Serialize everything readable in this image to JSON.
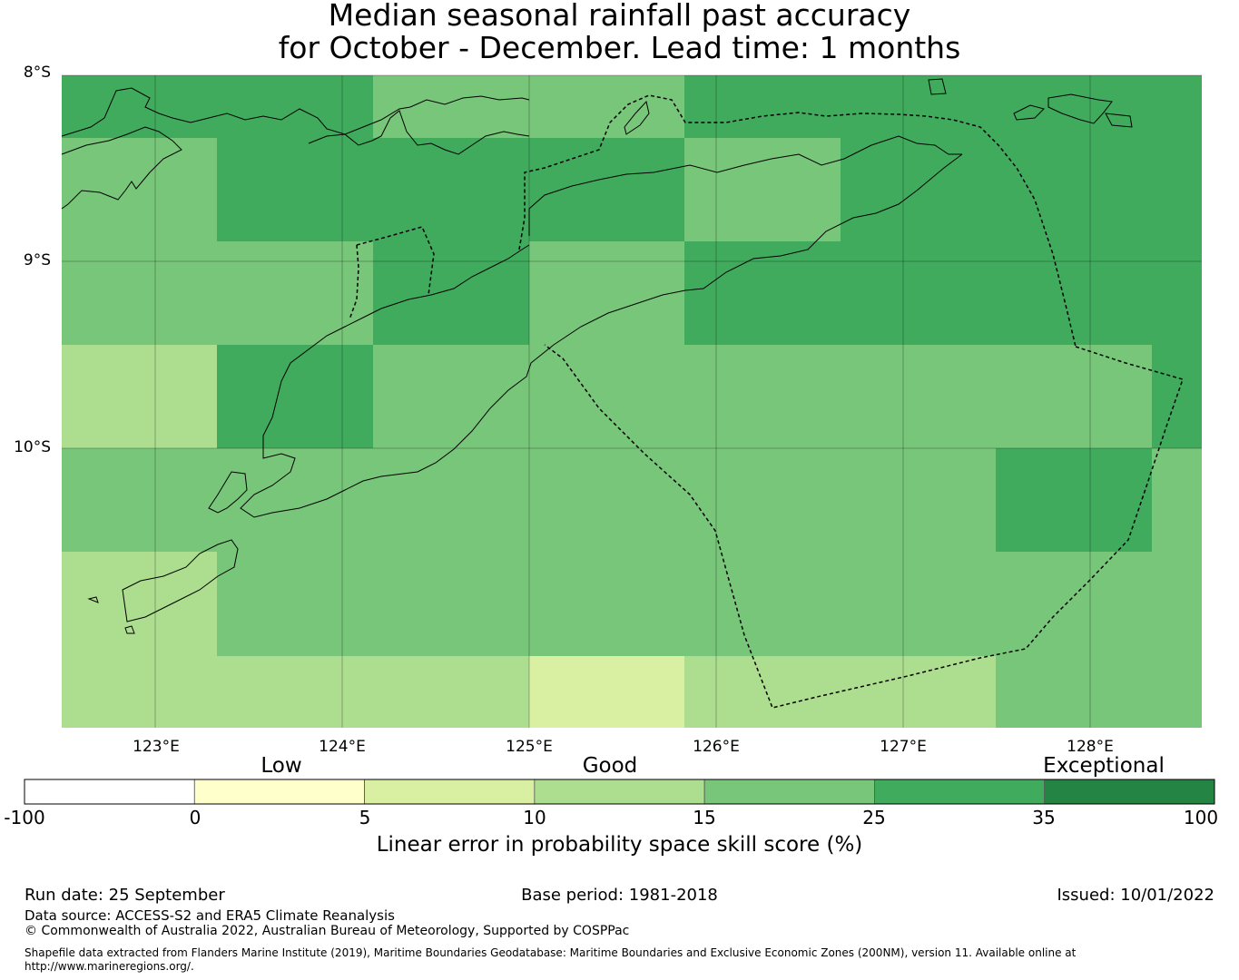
{
  "title": {
    "line1": "Median seasonal rainfall past accuracy",
    "line2": "for October - December. Lead time: 1 months"
  },
  "map": {
    "lat_labels": [
      "8°S",
      "9°S",
      "10°S"
    ],
    "lon_labels": [
      "123°E",
      "124°E",
      "125°E",
      "126°E",
      "127°E",
      "128°E"
    ],
    "grid_rows": [
      [
        "c25",
        "c25",
        "c15",
        "c15",
        "c25",
        "c25",
        "c25",
        "c25"
      ],
      [
        "c15",
        "c25",
        "c25",
        "c25",
        "c15",
        "c25",
        "c25",
        "c25"
      ],
      [
        "c15",
        "c15",
        "c25",
        "c15",
        "c25",
        "c25",
        "c25",
        "c25"
      ],
      [
        "c10",
        "c25",
        "c15",
        "c15",
        "c15",
        "c15",
        "c15",
        "c25"
      ],
      [
        "c15",
        "c15",
        "c15",
        "c15",
        "c15",
        "c15",
        "c25",
        "c15"
      ],
      [
        "c10",
        "c15",
        "c15",
        "c15",
        "c15",
        "c15",
        "c15",
        "c15"
      ],
      [
        "c10",
        "c10",
        "c10",
        "c5",
        "c10",
        "c10",
        "c15",
        "c15"
      ]
    ]
  },
  "legend": {
    "categories": [
      "Low",
      "Good",
      "Exceptional"
    ],
    "ticks": [
      "-100",
      "0",
      "5",
      "10",
      "15",
      "25",
      "35",
      "100"
    ],
    "bins": [
      {
        "from": -100,
        "to": 0,
        "color": "#ffffff"
      },
      {
        "from": 0,
        "to": 5,
        "color": "#ffffcc"
      },
      {
        "from": 5,
        "to": 10,
        "color": "#d9f0a3"
      },
      {
        "from": 10,
        "to": 15,
        "color": "#addd8e"
      },
      {
        "from": 15,
        "to": 25,
        "color": "#78c679"
      },
      {
        "from": 25,
        "to": 35,
        "color": "#41ab5d"
      },
      {
        "from": 35,
        "to": 100,
        "color": "#238443"
      }
    ],
    "label": "Linear error in probability space skill score (%)"
  },
  "colors": {
    "c5": "#d9f0a3",
    "c10": "#addd8e",
    "c15": "#78c679",
    "c25": "#41ab5d"
  },
  "footer": {
    "run_date": "Run date: 25 September",
    "base_period": "Base period: 1981-2018",
    "issued": "Issued: 10/01/2022",
    "data_source": "Data source: ACCESS-S2 and ERA5 Climate Reanalysis",
    "copyright": "© Commonwealth of Australia 2022, Australian Bureau of Meteorology, Supported by COSPPac",
    "shapefile_1": "Shapefile data extracted from Flanders Marine Institute (2019), Maritime Boundaries Geodatabase: Maritime Boundaries and Exclusive Economic Zones (200NM), version 11. Available online at",
    "shapefile_2": "http://www.marineregions.org/."
  }
}
